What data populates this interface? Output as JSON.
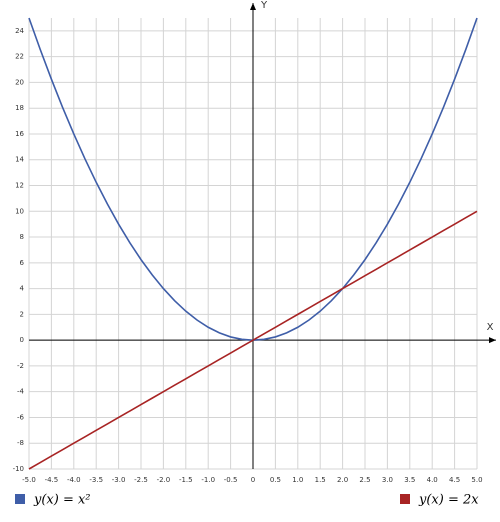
{
  "chart_data": {
    "type": "line",
    "x": [
      -5,
      -4.75,
      -4.5,
      -4.25,
      -4,
      -3.75,
      -3.5,
      -3.25,
      -3,
      -2.75,
      -2.5,
      -2.25,
      -2,
      -1.75,
      -1.5,
      -1.25,
      -1,
      -0.75,
      -0.5,
      -0.25,
      0,
      0.25,
      0.5,
      0.75,
      1,
      1.25,
      1.5,
      1.75,
      2,
      2.25,
      2.5,
      2.75,
      3,
      3.25,
      3.5,
      3.75,
      4,
      4.25,
      4.5,
      4.75,
      5
    ],
    "series": [
      {
        "name": "y(x) = x²",
        "color": "#3f5ea8",
        "values": [
          25,
          22.5625,
          20.25,
          18.0625,
          16,
          14.0625,
          12.25,
          10.5625,
          9,
          7.5625,
          6.25,
          5.0625,
          4,
          3.0625,
          2.25,
          1.5625,
          1,
          0.5625,
          0.25,
          0.0625,
          0,
          0.0625,
          0.25,
          0.5625,
          1,
          1.5625,
          2.25,
          3.0625,
          4,
          5.0625,
          6.25,
          7.5625,
          9,
          10.5625,
          12.25,
          14.0625,
          16,
          18.0625,
          20.25,
          22.5625,
          25
        ]
      },
      {
        "name": "y(x) = 2x",
        "color": "#a82424",
        "values": [
          -10,
          -9.5,
          -9,
          -8.5,
          -8,
          -7.5,
          -7,
          -6.5,
          -6,
          -5.5,
          -5,
          -4.5,
          -4,
          -3.5,
          -3,
          -2.5,
          -2,
          -1.5,
          -1,
          -0.5,
          0,
          0.5,
          1,
          1.5,
          2,
          2.5,
          3,
          3.5,
          4,
          4.5,
          5,
          5.5,
          6,
          6.5,
          7,
          7.5,
          8,
          8.5,
          9,
          9.5,
          10
        ]
      }
    ],
    "x_label": "X",
    "y_label": "Y",
    "xlim": [
      -5,
      5
    ],
    "ylim": [
      -10,
      25
    ],
    "xticks": [
      {
        "value": -5,
        "label": "-5.0"
      },
      -4.5,
      {
        "value": -4,
        "label": "-4.0"
      },
      -3.5,
      {
        "value": -3,
        "label": "-3.0"
      },
      -2.5,
      {
        "value": -2,
        "label": "-2.0"
      },
      -1.5,
      {
        "value": -1,
        "label": "-1.0"
      },
      -0.5,
      0,
      0.5,
      {
        "value": 1,
        "label": "1.0"
      },
      1.5,
      {
        "value": 2,
        "label": "2.0"
      },
      2.5,
      {
        "value": 3,
        "label": "3.0"
      },
      3.5,
      {
        "value": 4,
        "label": "4.0"
      },
      4.5,
      {
        "value": 5,
        "label": "5.0"
      }
    ],
    "yticks": [
      -10,
      -8,
      -6,
      -4,
      -2,
      0,
      2,
      4,
      6,
      8,
      10,
      12,
      14,
      16,
      18,
      20,
      22,
      24
    ],
    "grid": true
  }
}
